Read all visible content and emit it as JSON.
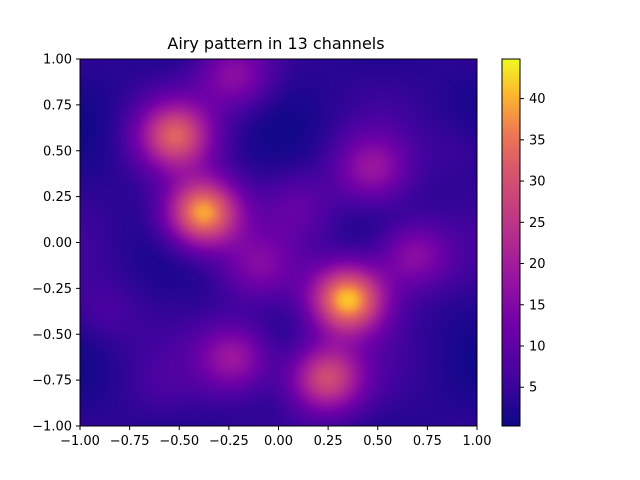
{
  "chart_data": {
    "type": "heatmap",
    "title": "Airy pattern in 13 channels",
    "xlabel": "",
    "ylabel": "",
    "xlim": [
      -1.0,
      1.0
    ],
    "ylim": [
      -1.0,
      1.0
    ],
    "x_ticks": [
      "−1.00",
      "−0.75",
      "−0.50",
      "−0.25",
      "0.00",
      "0.25",
      "0.50",
      "0.75",
      "1.00"
    ],
    "y_ticks": [
      "1.00",
      "0.75",
      "0.50",
      "0.25",
      "0.00",
      "−0.25",
      "−0.50",
      "−0.75",
      "−1.00"
    ],
    "x_tick_values": [
      -1.0,
      -0.75,
      -0.5,
      -0.25,
      0.0,
      0.25,
      0.5,
      0.75,
      1.0
    ],
    "y_tick_values": [
      1.0,
      0.75,
      0.5,
      0.25,
      0.0,
      -0.25,
      -0.5,
      -0.75,
      -1.0
    ],
    "colormap": "plasma",
    "colorbar": {
      "min": 0.3,
      "max": 44.8,
      "ticks": [
        "5",
        "10",
        "15",
        "20",
        "25",
        "30",
        "35",
        "40"
      ],
      "tick_values": [
        5,
        10,
        15,
        20,
        25,
        30,
        35,
        40
      ]
    },
    "peaks": [
      {
        "x": -0.38,
        "y": 0.16,
        "value": 43
      },
      {
        "x": 0.35,
        "y": -0.31,
        "value": 44
      },
      {
        "x": -0.52,
        "y": 0.58,
        "value": 33
      },
      {
        "x": 0.24,
        "y": -0.74,
        "value": 32
      },
      {
        "x": -0.22,
        "y": -0.63,
        "value": 22
      },
      {
        "x": 0.47,
        "y": 0.4,
        "value": 20
      },
      {
        "x": 0.68,
        "y": -0.07,
        "value": 20
      },
      {
        "x": -0.22,
        "y": 0.91,
        "value": 19
      },
      {
        "x": -0.1,
        "y": -0.13,
        "value": 16
      },
      {
        "x": 0.1,
        "y": 0.2,
        "value": 12
      },
      {
        "x": -0.88,
        "y": -0.38,
        "value": 10
      },
      {
        "x": -0.6,
        "y": -0.78,
        "value": 8
      },
      {
        "x": 0.93,
        "y": 0.52,
        "value": 9
      }
    ]
  }
}
